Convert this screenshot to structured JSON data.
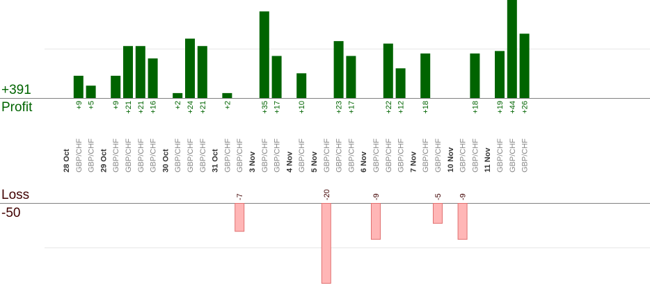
{
  "summary": {
    "profit_total": "+391",
    "profit_label": "Profit",
    "loss_label": "Loss",
    "loss_total": "-50"
  },
  "colors": {
    "profit_bar": "#006400",
    "profit_text": "#006400",
    "loss_bar_fill": "#ffb6b6",
    "loss_bar_stroke": "#e07070",
    "loss_text": "#400000",
    "axis_line": "#808080",
    "grid_line": "#e6e6e6",
    "day_label": "#333333",
    "trade_label": "#888888"
  },
  "chart_data": {
    "type": "bar",
    "ylim_profit": [
      0,
      20
    ],
    "ylim_loss": [
      -20,
      0
    ],
    "grid": true,
    "days": [
      {
        "label": "28 Oct",
        "trades": [
          {
            "pair": "GBP/CHF",
            "value": 9
          },
          {
            "pair": "GBP/CHF",
            "value": 5
          }
        ]
      },
      {
        "label": "29 Oct",
        "trades": [
          {
            "pair": "GBP/CHF",
            "value": 9
          },
          {
            "pair": "GBP/CHF",
            "value": 21
          },
          {
            "pair": "GBP/CHF",
            "value": 21
          },
          {
            "pair": "GBP/CHF",
            "value": 16
          }
        ]
      },
      {
        "label": "30 Oct",
        "trades": [
          {
            "pair": "GBP/CHF",
            "value": 2
          },
          {
            "pair": "GBP/CHF",
            "value": 24
          },
          {
            "pair": "GBP/CHF",
            "value": 21
          }
        ]
      },
      {
        "label": "31 Oct",
        "trades": [
          {
            "pair": "GBP/CHF",
            "value": 2
          },
          {
            "pair": "GBP/CHF",
            "value": -7
          }
        ]
      },
      {
        "label": "3 Nov",
        "trades": [
          {
            "pair": "GBP/CHF",
            "value": 35
          },
          {
            "pair": "GBP/CHF",
            "value": 17
          }
        ]
      },
      {
        "label": "4 Nov",
        "trades": [
          {
            "pair": "GBP/CHF",
            "value": 10
          }
        ]
      },
      {
        "label": "5 Nov",
        "trades": [
          {
            "pair": "GBP/CHF",
            "value": -20
          },
          {
            "pair": "GBP/CHF",
            "value": 23
          },
          {
            "pair": "GBP/CHF",
            "value": 17
          }
        ]
      },
      {
        "label": "6 Nov",
        "trades": [
          {
            "pair": "GBP/CHF",
            "value": -9
          },
          {
            "pair": "GBP/CHF",
            "value": 22
          },
          {
            "pair": "GBP/CHF",
            "value": 12
          }
        ]
      },
      {
        "label": "7 Nov",
        "trades": [
          {
            "pair": "GBP/CHF",
            "value": 18
          },
          {
            "pair": "GBP/CHF",
            "value": -5
          }
        ]
      },
      {
        "label": "10 Nov",
        "trades": [
          {
            "pair": "GBP/CHF",
            "value": -9
          },
          {
            "pair": "GBP/CHF",
            "value": 18
          }
        ]
      },
      {
        "label": "11 Nov",
        "trades": [
          {
            "pair": "GBP/CHF",
            "value": 19
          },
          {
            "pair": "GBP/CHF",
            "value": 44
          },
          {
            "pair": "GBP/CHF",
            "value": 26
          }
        ]
      }
    ]
  }
}
